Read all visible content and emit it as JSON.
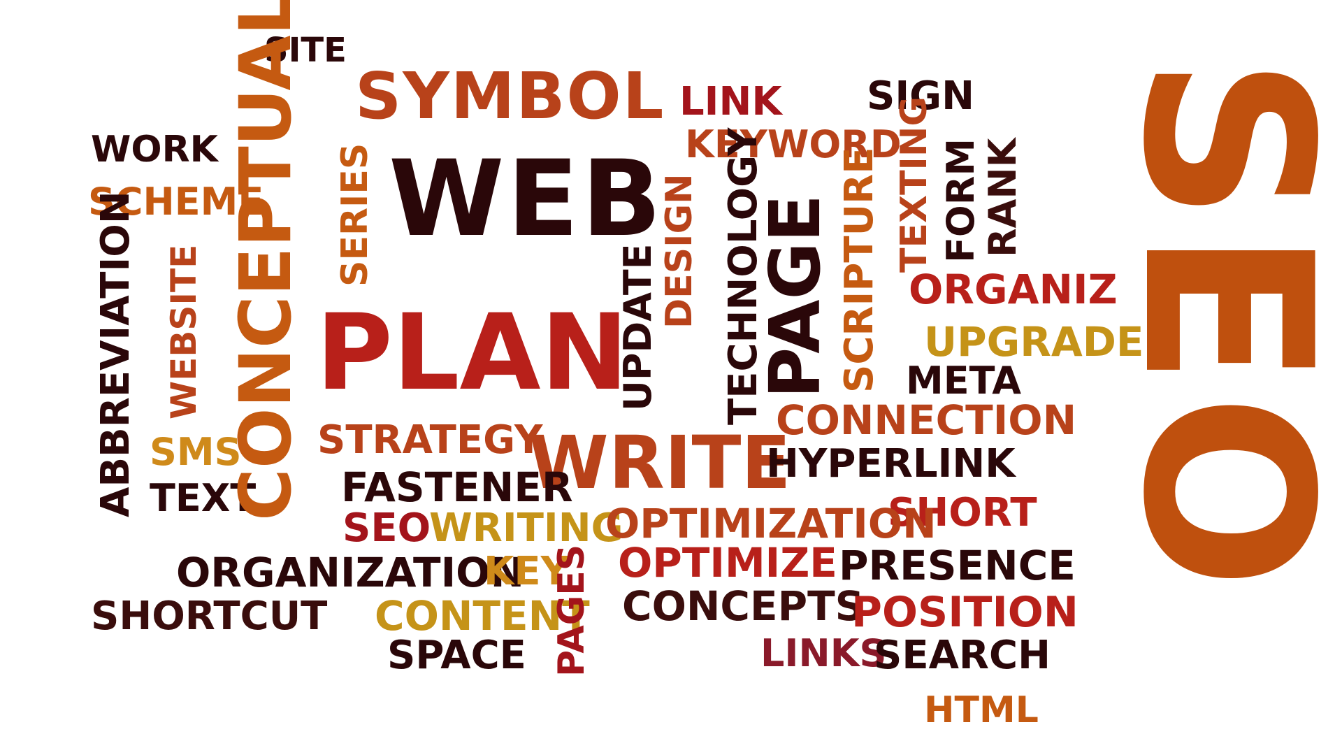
{
  "words": {
    "site": "SITE",
    "symbol": "SYMBOL",
    "link": "LINK",
    "sign": "SIGN",
    "seo_big": "SEO",
    "work": "WORK",
    "conceptual": "CONCEPTUAL",
    "keyword": "KEYWORD",
    "texting": "TEXTING",
    "web": "WEB",
    "scheme": "SCHEME",
    "series": "SERIES",
    "form": "FORM",
    "rank": "RANK",
    "abbreviation": "ABBREVIATION",
    "design": "DESIGN",
    "technology": "TECHNOLOGY",
    "page": "PAGE",
    "scripture": "SCRIPTURE",
    "organiz": "ORGANIZ",
    "website": "WEBSITE",
    "plan": "PLAN",
    "update": "UPDATE",
    "upgrade": "UPGRADE",
    "meta": "META",
    "connection": "CONNECTION",
    "strategy": "STRATEGY",
    "sms": "SMS",
    "write": "WRITE",
    "hyperlink": "HYPERLINK",
    "text": "TEXT",
    "fastener": "FASTENER",
    "short": "SHORT",
    "seo_small": "SEO",
    "writing": "WRITING",
    "optimization": "OPTIMIZATION",
    "organization": "ORGANIZATION",
    "key": "KEY",
    "optimize": "OPTIMIZE",
    "presence": "PRESENCE",
    "shortcut": "SHORTCUT",
    "content": "CONTENT",
    "pages": "PAGES",
    "concepts": "CONCEPTS",
    "position": "POSITION",
    "space": "SPACE",
    "links": "LINKS",
    "search": "SEARCH",
    "html": "HTML"
  }
}
